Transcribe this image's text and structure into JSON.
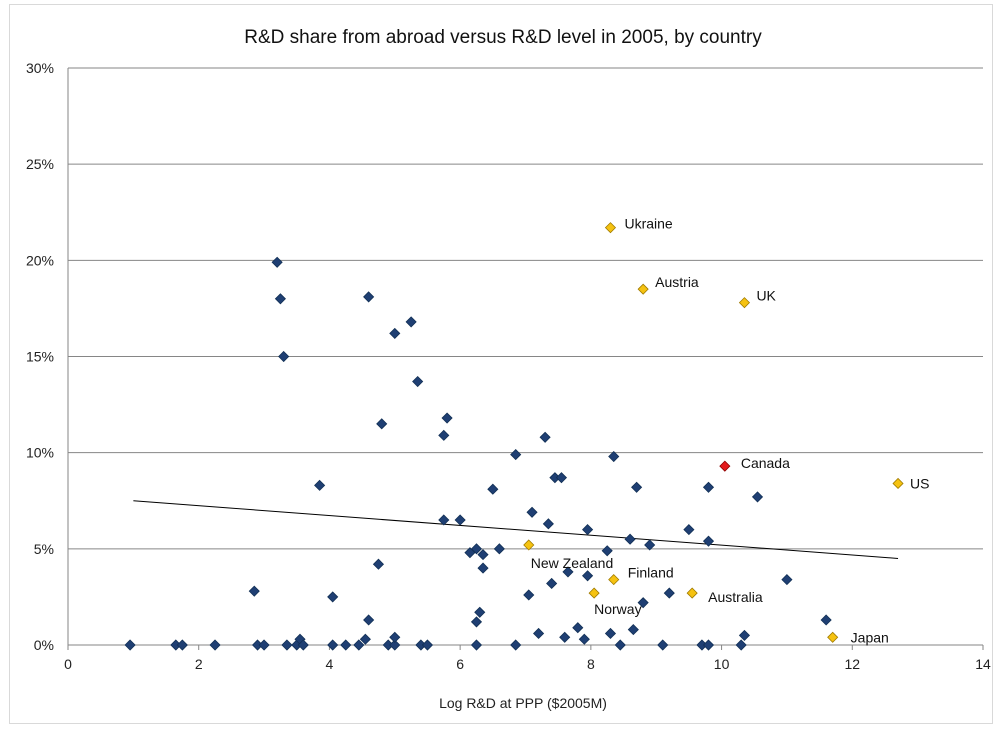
{
  "chart_data": {
    "type": "scatter",
    "title": "R&D share from abroad versus R&D level in 2005, by country",
    "xlabel": "Log R&D at PPP ($2005M)",
    "ylabel": "",
    "xlim": [
      0,
      14
    ],
    "ylim": [
      0,
      0.3
    ],
    "x_ticks": [
      0,
      2,
      4,
      6,
      8,
      10,
      12,
      14
    ],
    "y_ticks": [
      0,
      0.05,
      0.1,
      0.15,
      0.2,
      0.25,
      0.3
    ],
    "y_tick_labels": [
      "0%",
      "5%",
      "10%",
      "15%",
      "20%",
      "25%",
      "30%"
    ],
    "x_tick_labels": [
      "0",
      "2",
      "4",
      "6",
      "8",
      "10",
      "12",
      "14"
    ],
    "grid": "horizontal",
    "colors": {
      "default": "#1f3f73",
      "highlight": "#f5c211",
      "canada": "#e31a1c",
      "gridline": "#868686",
      "trend": "#000000"
    },
    "trendline": {
      "x": [
        1.0,
        12.7
      ],
      "y": [
        0.075,
        0.045
      ]
    },
    "labeled_points": [
      {
        "label": "Ukraine",
        "x": 8.3,
        "y": 0.217,
        "color": "highlight"
      },
      {
        "label": "Austria",
        "x": 8.8,
        "y": 0.185,
        "color": "highlight"
      },
      {
        "label": "UK",
        "x": 10.35,
        "y": 0.178,
        "color": "highlight"
      },
      {
        "label": "Canada",
        "x": 10.05,
        "y": 0.093,
        "color": "canada"
      },
      {
        "label": "US",
        "x": 12.7,
        "y": 0.084,
        "color": "highlight"
      },
      {
        "label": "New Zealand",
        "x": 7.05,
        "y": 0.052,
        "color": "highlight"
      },
      {
        "label": "Finland",
        "x": 8.35,
        "y": 0.034,
        "color": "highlight"
      },
      {
        "label": "Australia",
        "x": 9.55,
        "y": 0.027,
        "color": "highlight"
      },
      {
        "label": "Norway",
        "x": 8.05,
        "y": 0.027,
        "color": "highlight"
      },
      {
        "label": "Japan",
        "x": 11.7,
        "y": 0.004,
        "color": "highlight"
      }
    ],
    "points": [
      [
        0.95,
        0.0
      ],
      [
        1.65,
        0.0
      ],
      [
        1.75,
        0.0
      ],
      [
        2.25,
        0.0
      ],
      [
        2.9,
        0.0
      ],
      [
        3.0,
        0.0
      ],
      [
        3.35,
        0.0
      ],
      [
        3.5,
        0.0
      ],
      [
        3.55,
        0.003
      ],
      [
        3.6,
        0.0
      ],
      [
        4.05,
        0.0
      ],
      [
        4.25,
        0.0
      ],
      [
        4.45,
        0.0
      ],
      [
        4.55,
        0.003
      ],
      [
        4.9,
        0.0
      ],
      [
        5.0,
        0.0
      ],
      [
        5.0,
        0.004
      ],
      [
        5.4,
        0.0
      ],
      [
        5.5,
        0.0
      ],
      [
        6.25,
        0.0
      ],
      [
        6.85,
        0.0
      ],
      [
        7.6,
        0.004
      ],
      [
        7.9,
        0.003
      ],
      [
        8.3,
        0.006
      ],
      [
        8.45,
        0.0
      ],
      [
        8.65,
        0.008
      ],
      [
        9.1,
        0.0
      ],
      [
        9.7,
        0.0
      ],
      [
        9.8,
        0.0
      ],
      [
        10.3,
        0.0
      ],
      [
        10.35,
        0.005
      ],
      [
        11.6,
        0.013
      ],
      [
        7.2,
        0.006
      ],
      [
        7.8,
        0.009
      ],
      [
        6.25,
        0.012
      ],
      [
        6.3,
        0.017
      ],
      [
        4.6,
        0.013
      ],
      [
        2.85,
        0.028
      ],
      [
        4.05,
        0.025
      ],
      [
        4.75,
        0.042
      ],
      [
        3.2,
        0.199
      ],
      [
        3.25,
        0.18
      ],
      [
        3.3,
        0.15
      ],
      [
        4.6,
        0.181
      ],
      [
        5.25,
        0.168
      ],
      [
        5.0,
        0.162
      ],
      [
        5.35,
        0.137
      ],
      [
        4.8,
        0.115
      ],
      [
        5.8,
        0.118
      ],
      [
        5.75,
        0.109
      ],
      [
        3.85,
        0.083
      ],
      [
        5.75,
        0.065
      ],
      [
        6.0,
        0.065
      ],
      [
        6.15,
        0.048
      ],
      [
        6.25,
        0.05
      ],
      [
        6.35,
        0.047
      ],
      [
        6.35,
        0.04
      ],
      [
        6.6,
        0.05
      ],
      [
        6.5,
        0.081
      ],
      [
        6.85,
        0.099
      ],
      [
        7.1,
        0.069
      ],
      [
        7.3,
        0.108
      ],
      [
        7.35,
        0.063
      ],
      [
        7.45,
        0.087
      ],
      [
        7.55,
        0.087
      ],
      [
        7.05,
        0.026
      ],
      [
        7.4,
        0.032
      ],
      [
        7.65,
        0.038
      ],
      [
        7.95,
        0.036
      ],
      [
        7.95,
        0.06
      ],
      [
        8.25,
        0.049
      ],
      [
        8.35,
        0.098
      ],
      [
        8.6,
        0.055
      ],
      [
        8.7,
        0.082
      ],
      [
        8.8,
        0.022
      ],
      [
        8.9,
        0.052
      ],
      [
        9.2,
        0.027
      ],
      [
        9.5,
        0.06
      ],
      [
        9.8,
        0.082
      ],
      [
        9.8,
        0.054
      ],
      [
        10.55,
        0.077
      ],
      [
        11.0,
        0.034
      ]
    ]
  }
}
